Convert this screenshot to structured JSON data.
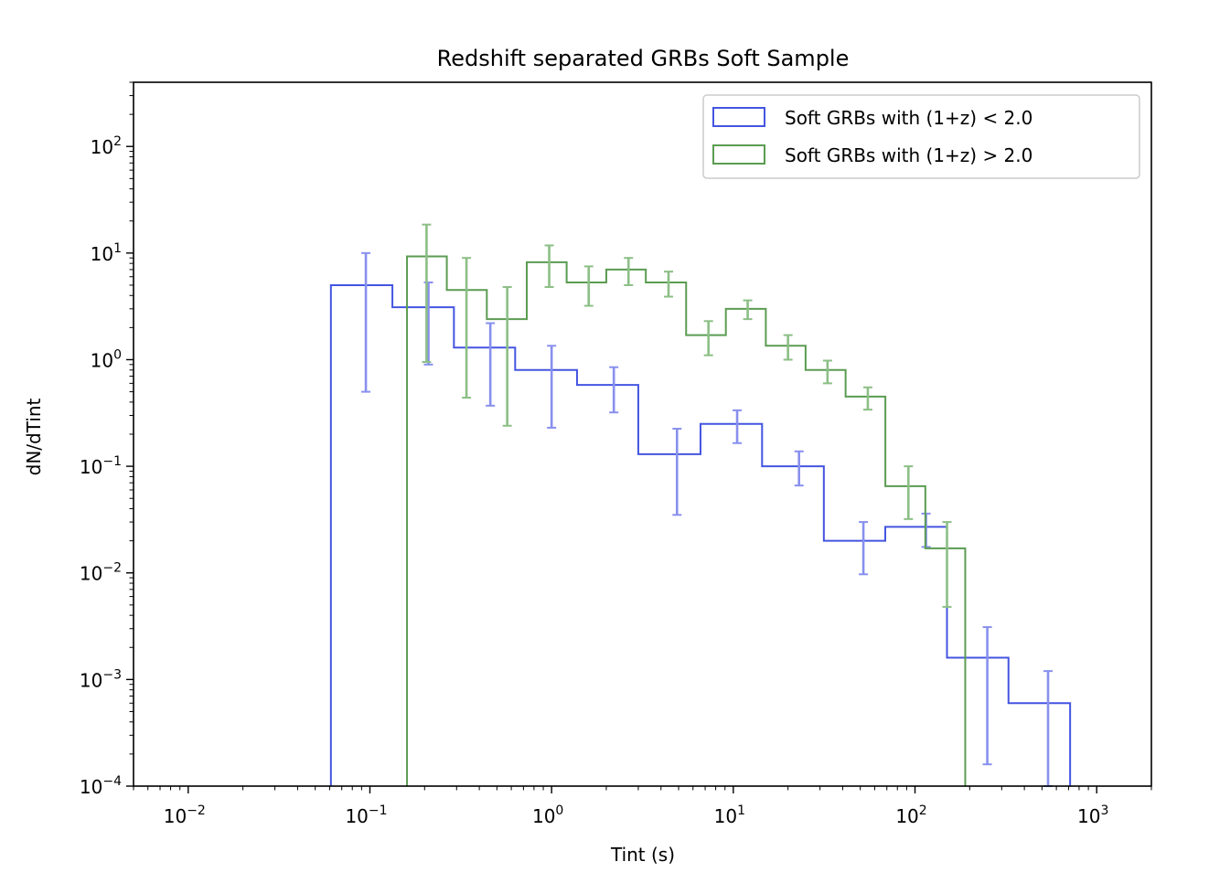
{
  "chart_data": {
    "type": "histogram-step",
    "title": "Redshift separated GRBs Soft Sample",
    "xlabel": "Tint (s)",
    "ylabel": "dN/dTint",
    "xscale": "log",
    "yscale": "log",
    "xlim": [
      0.005,
      2000
    ],
    "ylim": [
      0.0001,
      400
    ],
    "x_ticks": [
      {
        "value": 0.01,
        "base": "10",
        "exp": "−2"
      },
      {
        "value": 0.1,
        "base": "10",
        "exp": "−1"
      },
      {
        "value": 1,
        "base": "10",
        "exp": "0"
      },
      {
        "value": 10,
        "base": "10",
        "exp": "1"
      },
      {
        "value": 100,
        "base": "10",
        "exp": "2"
      },
      {
        "value": 1000,
        "base": "10",
        "exp": "3"
      }
    ],
    "y_ticks": [
      {
        "value": 0.0001,
        "base": "10",
        "exp": "−4"
      },
      {
        "value": 0.001,
        "base": "10",
        "exp": "−3"
      },
      {
        "value": 0.01,
        "base": "10",
        "exp": "−2"
      },
      {
        "value": 0.1,
        "base": "10",
        "exp": "−1"
      },
      {
        "value": 1,
        "base": "10",
        "exp": "0"
      },
      {
        "value": 10,
        "base": "10",
        "exp": "1"
      },
      {
        "value": 100,
        "base": "10",
        "exp": "2"
      }
    ],
    "legend_location": "top-right",
    "series": [
      {
        "name": "Soft GRBs with (1+z) < 2.0",
        "color": "#4455e0",
        "error_color": "#8890ee",
        "bin_edges": [
          0.061,
          0.133,
          0.29,
          0.63,
          1.38,
          3.0,
          6.6,
          14.4,
          31.5,
          68.6,
          150,
          327,
          714
        ],
        "values": [
          5.0,
          3.1,
          1.3,
          0.8,
          0.58,
          0.13,
          0.25,
          0.1,
          0.02,
          0.027,
          0.0016,
          0.0006
        ],
        "errors": [
          {
            "x": 0.095,
            "low": 0.5,
            "high": 10.0
          },
          {
            "x": 0.21,
            "low": 0.9,
            "high": 5.3
          },
          {
            "x": 0.46,
            "low": 0.37,
            "high": 2.2
          },
          {
            "x": 1.0,
            "low": 0.23,
            "high": 1.35
          },
          {
            "x": 2.2,
            "low": 0.32,
            "high": 0.85
          },
          {
            "x": 4.9,
            "low": 0.035,
            "high": 0.225
          },
          {
            "x": 10.5,
            "low": 0.165,
            "high": 0.335
          },
          {
            "x": 23.0,
            "low": 0.066,
            "high": 0.138
          },
          {
            "x": 52.0,
            "low": 0.0097,
            "high": 0.03
          },
          {
            "x": 115.0,
            "low": 0.0175,
            "high": 0.036
          },
          {
            "x": 250.0,
            "low": 0.00016,
            "high": 0.0031
          },
          {
            "x": 540.0,
            "low": 0.0001,
            "high": 0.0012
          }
        ]
      },
      {
        "name": "Soft GRBs with (1+z) > 2.0",
        "color": "#5b9c52",
        "error_color": "#8cbf86",
        "bin_edges": [
          0.16,
          0.265,
          0.44,
          0.73,
          1.21,
          2.0,
          3.3,
          5.5,
          9.1,
          15.1,
          25.0,
          41.5,
          68.7,
          114,
          189
        ],
        "values": [
          9.3,
          4.5,
          2.4,
          8.2,
          5.3,
          7.0,
          5.3,
          1.7,
          3.0,
          1.35,
          0.8,
          0.45,
          0.065,
          0.017
        ],
        "errors": [
          {
            "x": 0.205,
            "low": 0.95,
            "high": 18.5
          },
          {
            "x": 0.34,
            "low": 0.44,
            "high": 9.0
          },
          {
            "x": 0.57,
            "low": 0.24,
            "high": 4.8
          },
          {
            "x": 0.97,
            "low": 4.8,
            "high": 11.8
          },
          {
            "x": 1.6,
            "low": 3.2,
            "high": 7.5
          },
          {
            "x": 2.65,
            "low": 5.0,
            "high": 9.0
          },
          {
            "x": 4.4,
            "low": 3.9,
            "high": 6.7
          },
          {
            "x": 7.3,
            "low": 1.1,
            "high": 2.3
          },
          {
            "x": 12.0,
            "low": 2.4,
            "high": 3.6
          },
          {
            "x": 20.0,
            "low": 1.0,
            "high": 1.7
          },
          {
            "x": 33.0,
            "low": 0.6,
            "high": 0.98
          },
          {
            "x": 55.0,
            "low": 0.34,
            "high": 0.55
          },
          {
            "x": 92.0,
            "low": 0.032,
            "high": 0.1
          },
          {
            "x": 150.0,
            "low": 0.0048,
            "high": 0.03
          }
        ]
      }
    ]
  }
}
